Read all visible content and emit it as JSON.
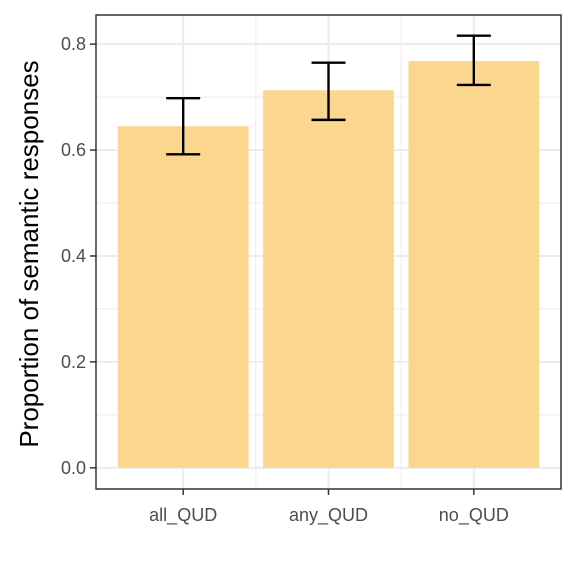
{
  "chart_data": {
    "type": "bar",
    "categories": [
      "all_QUD",
      "any_QUD",
      "no_QUD"
    ],
    "values": [
      0.645,
      0.713,
      0.768
    ],
    "error_bars": [
      {
        "low": 0.592,
        "high": 0.698
      },
      {
        "low": 0.657,
        "high": 0.765
      },
      {
        "low": 0.723,
        "high": 0.816
      }
    ],
    "xlabel": "",
    "ylabel": "Proportion of semantic responses",
    "ylim": [
      -0.04,
      0.855
    ],
    "yticks": [
      0.0,
      0.2,
      0.4,
      0.6,
      0.8
    ],
    "ytick_labels": [
      "0.0",
      "0.2",
      "0.4",
      "0.6",
      "0.8"
    ],
    "grid": true,
    "colors": {
      "bar": "#FBD68F",
      "grid": "#EBEBEB",
      "panel_border": "#333333",
      "error_bar": "#000000",
      "tick_text": "#4D4D4D"
    }
  }
}
